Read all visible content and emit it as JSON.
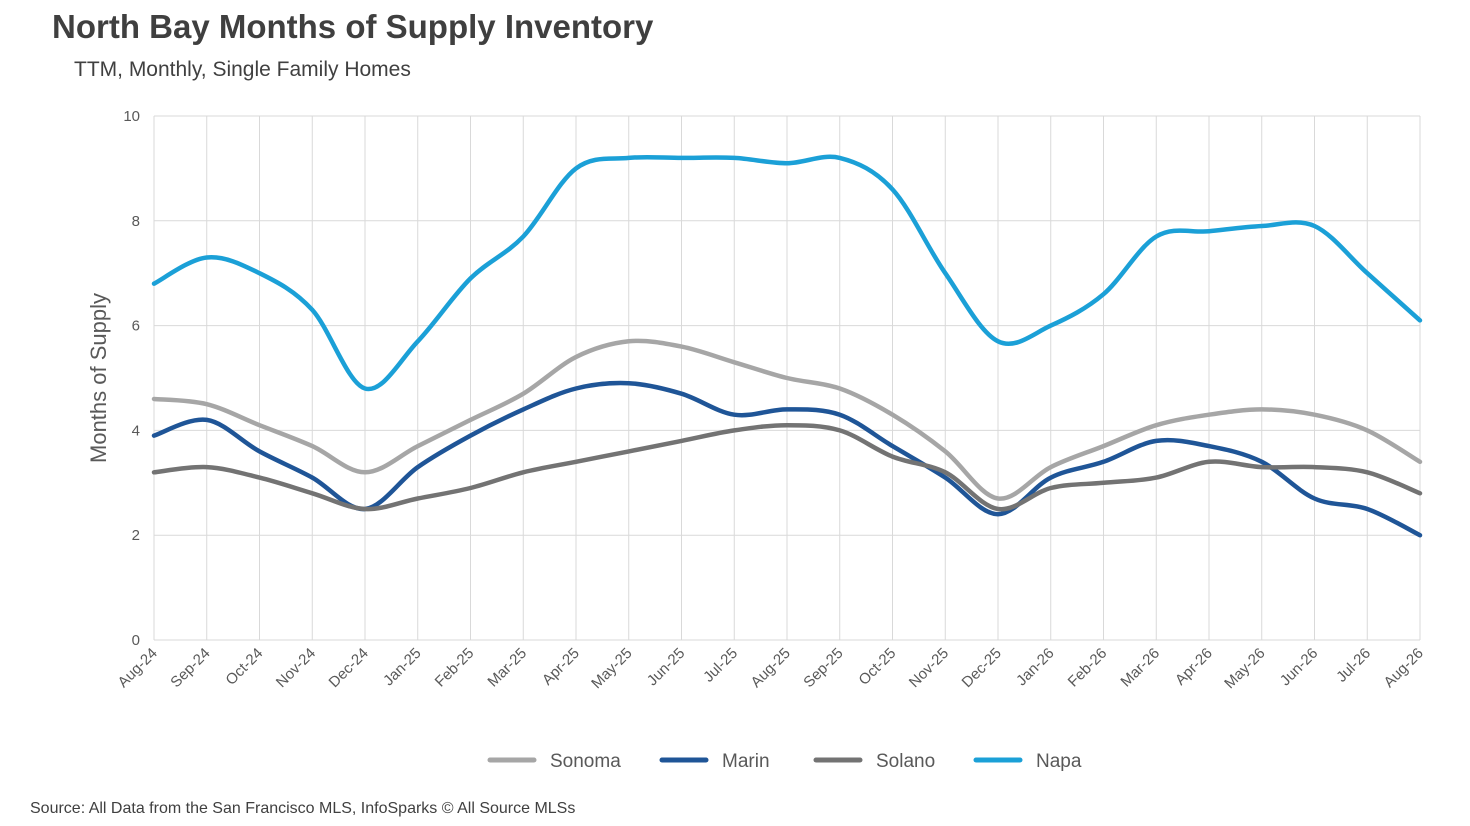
{
  "header": {
    "title": "North Bay Months of Supply Inventory",
    "subtitle": "TTM, Monthly, Single Family Homes"
  },
  "footer": {
    "source": "Source: All Data from the San Francisco MLS, InfoSparks © All Source MLSs"
  },
  "chart_data": {
    "type": "line",
    "title": "North Bay Months of Supply Inventory",
    "subtitle": "TTM, Monthly, Single Family Homes",
    "xlabel": "",
    "ylabel": "Months of Supply",
    "ylim": [
      0,
      10
    ],
    "yticks": [
      0,
      2,
      4,
      6,
      8,
      10
    ],
    "grid": true,
    "legend_position": "bottom",
    "categories": [
      "Aug-24",
      "Sep-24",
      "Oct-24",
      "Nov-24",
      "Dec-24",
      "Jan-25",
      "Feb-25",
      "Mar-25",
      "Apr-25",
      "May-25",
      "Jun-25",
      "Jul-25",
      "Aug-25",
      "Sep-25",
      "Oct-25",
      "Nov-25",
      "Dec-25",
      "Jan-26",
      "Feb-26",
      "Mar-26",
      "Apr-26",
      "May-26",
      "Jun-26",
      "Jul-26",
      "Aug-26"
    ],
    "series": [
      {
        "name": "Sonoma",
        "color": "#a6a6a6",
        "values": [
          4.6,
          4.5,
          4.1,
          3.7,
          3.2,
          3.7,
          4.2,
          4.7,
          5.4,
          5.7,
          5.6,
          5.3,
          5.0,
          4.8,
          4.3,
          3.6,
          2.7,
          3.3,
          3.7,
          4.1,
          4.3,
          4.4,
          4.3,
          4.0,
          3.4
        ]
      },
      {
        "name": "Marin",
        "color": "#1f5597",
        "values": [
          3.9,
          4.2,
          3.6,
          3.1,
          2.5,
          3.3,
          3.9,
          4.4,
          4.8,
          4.9,
          4.7,
          4.3,
          4.4,
          4.3,
          3.7,
          3.1,
          2.4,
          3.1,
          3.4,
          3.8,
          3.7,
          3.4,
          2.7,
          2.5,
          2.0
        ]
      },
      {
        "name": "Solano",
        "color": "#737373",
        "values": [
          3.2,
          3.3,
          3.1,
          2.8,
          2.5,
          2.7,
          2.9,
          3.2,
          3.4,
          3.6,
          3.8,
          4.0,
          4.1,
          4.0,
          3.5,
          3.2,
          2.5,
          2.9,
          3.0,
          3.1,
          3.4,
          3.3,
          3.3,
          3.2,
          2.8
        ]
      },
      {
        "name": "Napa",
        "color": "#1ba0d7",
        "values": [
          6.8,
          7.3,
          7.0,
          6.3,
          4.8,
          5.7,
          6.9,
          7.7,
          9.0,
          9.2,
          9.2,
          9.2,
          9.1,
          9.2,
          8.6,
          7.0,
          5.7,
          6.0,
          6.6,
          7.7,
          7.8,
          7.9,
          7.9,
          7.0,
          6.1
        ]
      }
    ]
  }
}
